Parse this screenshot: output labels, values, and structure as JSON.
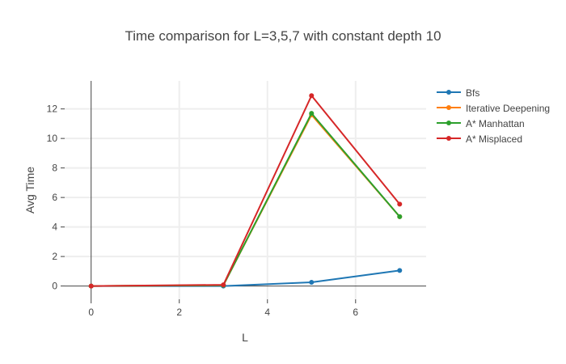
{
  "chart_data": {
    "type": "line",
    "title": "Time comparison for L=3,5,7 with constant depth 10",
    "xlabel": "L",
    "ylabel": "Avg Time",
    "xlim": [
      -0.6,
      7.6
    ],
    "ylim": [
      -0.9,
      13.9
    ],
    "xticks": [
      0,
      2,
      4,
      6
    ],
    "yticks": [
      0,
      2,
      4,
      6,
      8,
      10,
      12
    ],
    "grid": true,
    "legend_position": "top-right",
    "x": [
      0,
      3,
      5,
      7
    ],
    "series": [
      {
        "name": "Bfs",
        "color": "#1f77b4",
        "values": [
          0,
          0,
          0.25,
          1.05
        ]
      },
      {
        "name": "Iterative Deepening",
        "color": "#ff7f0e",
        "values": [
          0,
          0.05,
          11.6,
          4.7
        ]
      },
      {
        "name": "A* Manhattan",
        "color": "#2ca02c",
        "values": [
          0,
          0.05,
          11.7,
          4.7
        ]
      },
      {
        "name": "A* Misplaced",
        "color": "#d62728",
        "values": [
          0,
          0.08,
          12.9,
          5.55
        ]
      }
    ]
  }
}
